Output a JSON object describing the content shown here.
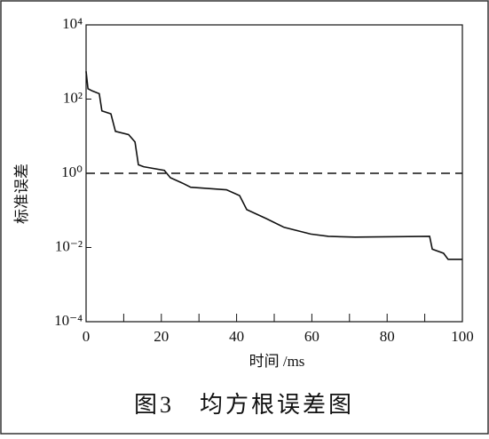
{
  "chart_data": {
    "type": "line",
    "caption": "图3　均方根误差图",
    "xlabel": "时间 /ms",
    "ylabel": "标准误差",
    "log_y": true,
    "color": "#111111",
    "xlim": [
      0,
      100
    ],
    "xticks": [
      0,
      20,
      40,
      60,
      80,
      100
    ],
    "xminor_ticks": [
      10,
      30,
      50,
      70,
      90
    ],
    "ylim": [
      0.0001,
      10000
    ],
    "yticks": [
      {
        "value": 0.0001,
        "label": "10⁻⁴"
      },
      {
        "value": 0.01,
        "label": "10⁻²"
      },
      {
        "value": 1,
        "label": "10⁰"
      },
      {
        "value": 100,
        "label": "10²"
      },
      {
        "value": 10000,
        "label": "10⁴"
      }
    ],
    "reference_line": 1,
    "x": [
      0,
      0.5,
      1.7,
      3.5,
      4.2,
      6.6,
      7.8,
      11.3,
      13,
      13.9,
      15.3,
      20.8,
      22.4,
      25.5,
      27.8,
      37.3,
      40.8,
      42.7,
      47.9,
      52.6,
      59.7,
      64.4,
      71.5,
      91.3,
      92,
      95,
      96.2,
      100
    ],
    "values": [
      560,
      190,
      165,
      140,
      48,
      40,
      13.5,
      11,
      7,
      1.7,
      1.5,
      1.2,
      0.76,
      0.55,
      0.42,
      0.36,
      0.25,
      0.105,
      0.06,
      0.035,
      0.023,
      0.02,
      0.019,
      0.02,
      0.009,
      0.007,
      0.0048,
      0.0048
    ]
  }
}
